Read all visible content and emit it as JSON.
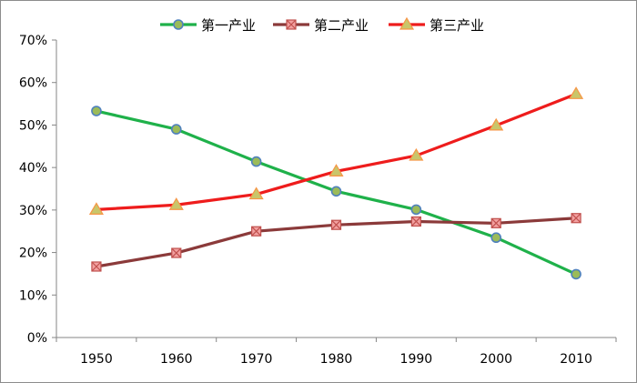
{
  "chart_data": {
    "type": "line",
    "x": [
      1950,
      1960,
      1970,
      1980,
      1990,
      2000,
      2010
    ],
    "ylim": [
      0,
      70
    ],
    "y_ticks": [
      "0%",
      "10%",
      "20%",
      "30%",
      "40%",
      "50%",
      "60%",
      "70%"
    ],
    "y_tick_values": [
      0,
      10,
      20,
      30,
      40,
      50,
      60,
      70
    ],
    "legend_position": "top",
    "grid": false,
    "series": [
      {
        "name": "第一产业",
        "color": "#1fb14a",
        "marker": "circle",
        "values": [
          53.3,
          49.0,
          41.4,
          34.4,
          30.1,
          23.5,
          14.9
        ]
      },
      {
        "name": "第二产业",
        "color": "#8b3a3a",
        "marker": "square-x",
        "values": [
          16.7,
          19.9,
          25.0,
          26.5,
          27.3,
          26.9,
          28.1
        ]
      },
      {
        "name": "第三产业",
        "color": "#ee1c1c",
        "marker": "triangle",
        "values": [
          30.1,
          31.2,
          33.7,
          39.1,
          42.8,
          49.9,
          57.3
        ]
      }
    ]
  }
}
